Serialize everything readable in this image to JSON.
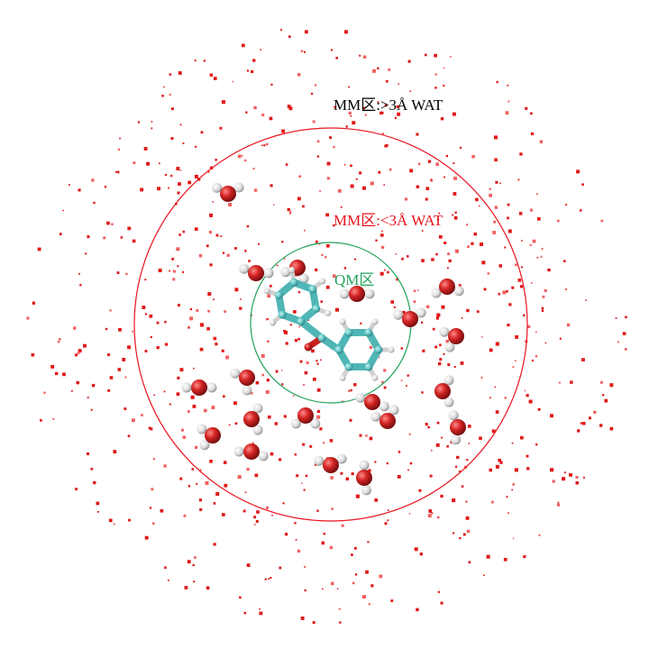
{
  "labels": {
    "mm_outer": "MM区:>3Å  WAT",
    "mm_inner": "MM区:<3Å  WAT",
    "qm": "QM区"
  },
  "colors": {
    "mm_outer_text": "#000000",
    "mm_inner": "#e8141e",
    "qm": "#21a35a",
    "oxygen": "#d42424",
    "hydrogen": "#e4e4e4",
    "carbon": "#5fc3c3",
    "dots": "#e01818"
  },
  "icons": {
    "water": "water-molecule-icon",
    "solute": "benzophenone-molecule-icon"
  }
}
